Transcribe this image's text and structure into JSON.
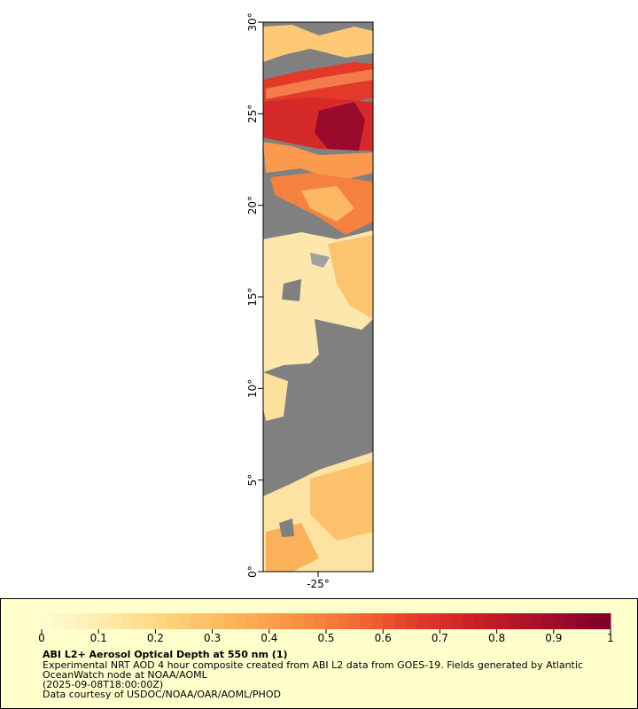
{
  "map": {
    "xlim": [
      -28,
      -22
    ],
    "ylim": [
      0,
      30
    ],
    "xticks": [
      {
        "value": -25,
        "label": "-25°"
      }
    ],
    "yticks": [
      {
        "value": 0,
        "label": "0°"
      },
      {
        "value": 5,
        "label": "5°"
      },
      {
        "value": 10,
        "label": "10°"
      },
      {
        "value": 15,
        "label": "15°"
      },
      {
        "value": 20,
        "label": "20°"
      },
      {
        "value": 25,
        "label": "25°"
      },
      {
        "value": 30,
        "label": "30°"
      }
    ]
  },
  "colorbar": {
    "range": [
      0,
      1
    ],
    "ticks": [
      0,
      0.1,
      0.2,
      0.3,
      0.4,
      0.5,
      0.6,
      0.7,
      0.8,
      0.9,
      1
    ],
    "colors": [
      "#fffad2",
      "#fee9a6",
      "#fdd27a",
      "#fdb45c",
      "#fa9244",
      "#f26b34",
      "#e2392a",
      "#c81d26",
      "#a70d2c",
      "#80002a"
    ]
  },
  "legend": {
    "title": "ABI L2+ Aerosol Optical Depth at 550 nm (1)",
    "lines": [
      "Experimental NRT AOD 4 hour composite created from ABI L2 data from GOES-19. Fields generated by Atlantic",
      "OceanWatch node at NOAA/AOML",
      "(2025-09-08T18:00:00Z)",
      "Data courtesy of USDOC/NOAA/OAR/AOML/PHOD"
    ]
  }
}
